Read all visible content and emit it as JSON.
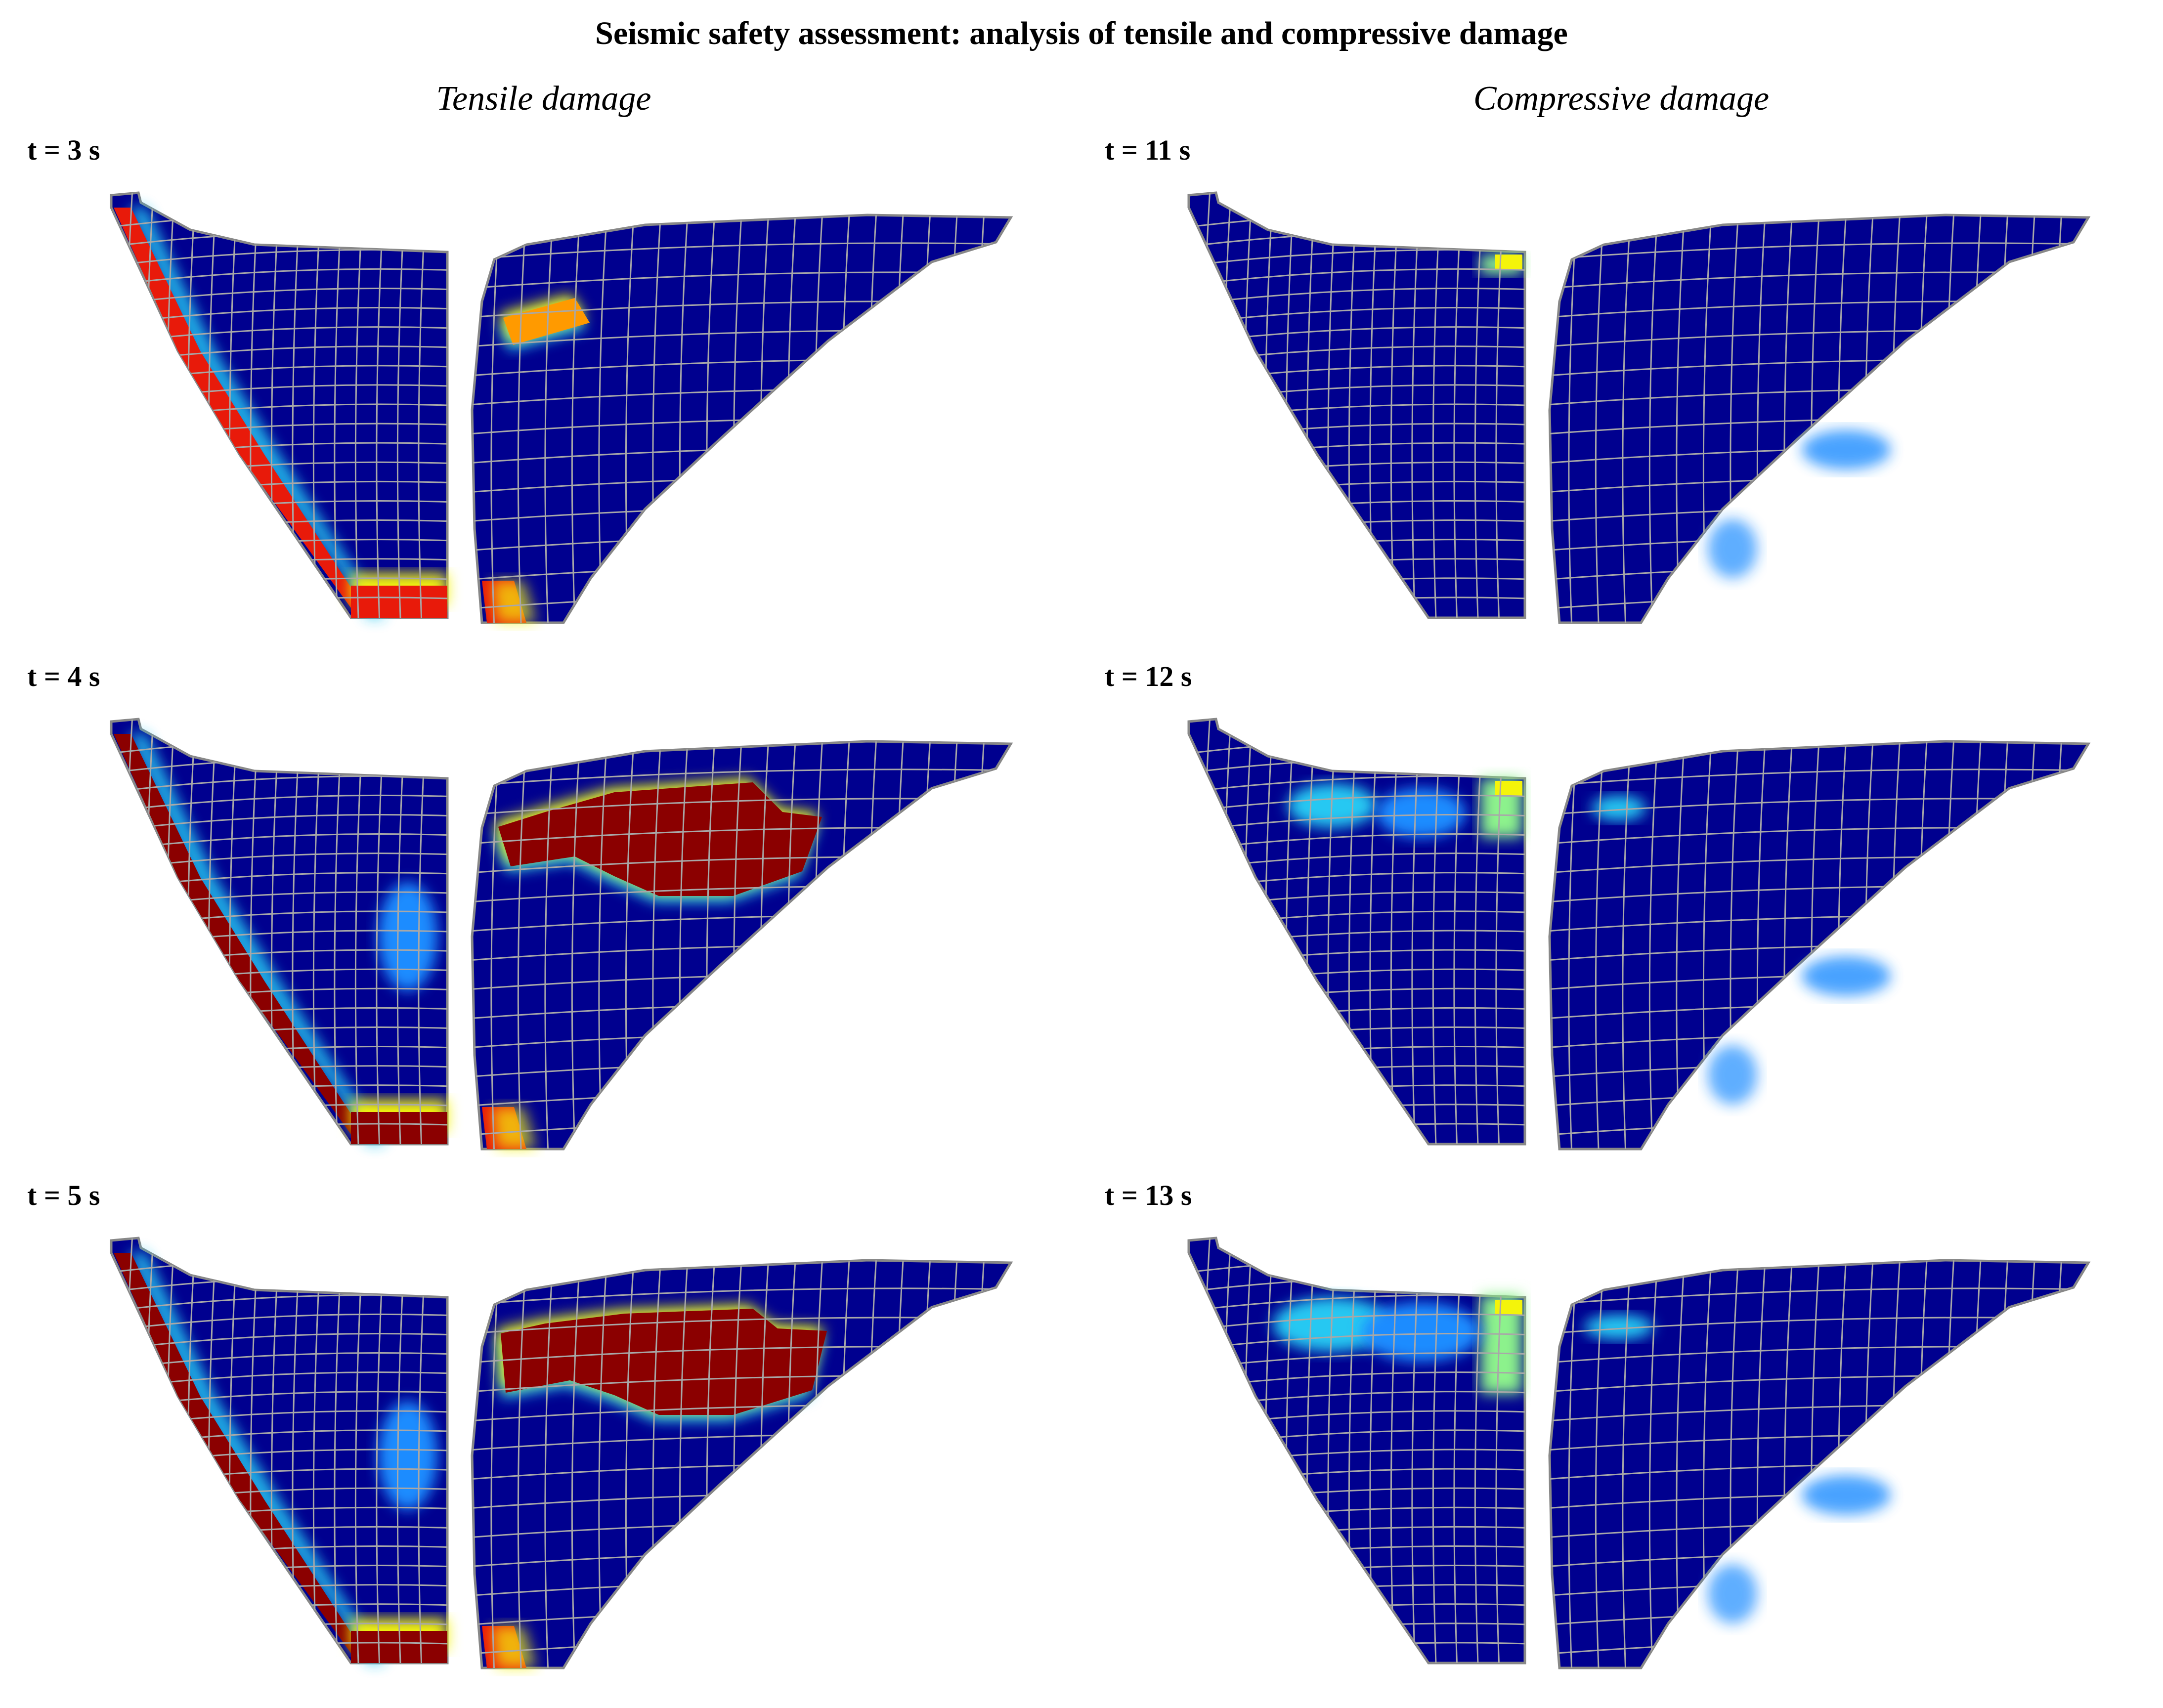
{
  "title": "Seismic safety assessment: analysis of tensile and compressive damage",
  "columns": [
    {
      "heading": "Tensile damage"
    },
    {
      "heading": "Compressive damage"
    }
  ],
  "panels": [
    {
      "time": "t = 3 s",
      "kind": "tensile",
      "severity": 0
    },
    {
      "time": "t = 11 s",
      "kind": "compressive",
      "severity": 0
    },
    {
      "time": "t = 4 s",
      "kind": "tensile",
      "severity": 1
    },
    {
      "time": "t = 12 s",
      "kind": "compressive",
      "severity": 1
    },
    {
      "time": "t = 5 s",
      "kind": "tensile",
      "severity": 2
    },
    {
      "time": "t = 13 s",
      "kind": "compressive",
      "severity": 2
    }
  ],
  "colors": {
    "undamaged": "#00008f",
    "mesh": "#a8a8a8",
    "severe": "#8b0000",
    "red": "#e81a0a",
    "orange": "#ff9a00",
    "yellow": "#f4f40a",
    "cyan": "#26c8f2",
    "light_blue": "#1a8cff",
    "green_cyan": "#8cf28c"
  }
}
